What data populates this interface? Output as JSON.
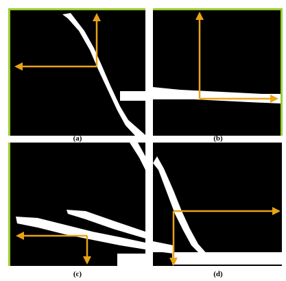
{
  "colors": {
    "panel_background": "#000000",
    "edge_lines": "#ffffff",
    "arrows": "#e8a317",
    "frame_accent": "#9acd32"
  },
  "panels": [
    {
      "id": "a",
      "caption": "(a)",
      "arrow_icon": "coordinate-axes-icon"
    },
    {
      "id": "b",
      "caption": "(b)",
      "arrow_icon": "coordinate-axes-icon"
    },
    {
      "id": "c",
      "caption": "(c)",
      "arrow_icon": "coordinate-axes-icon"
    },
    {
      "id": "d",
      "caption": "(d)",
      "arrow_icon": "coordinate-axes-icon"
    }
  ]
}
